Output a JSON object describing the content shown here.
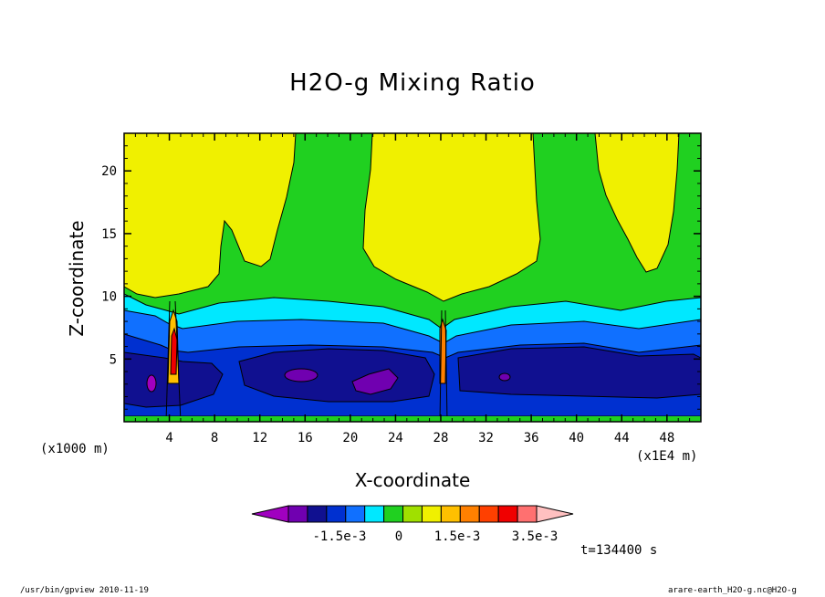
{
  "chart_data": {
    "type": "heatmap",
    "title": "H2O-g Mixing Ratio",
    "xlabel": "X-coordinate",
    "ylabel": "Z-coordinate",
    "x_unit_label": "(x1000 m)",
    "x_scale_label": "(x1E4 m)",
    "time_label": "t=134400 s",
    "x_ticks": [
      "4",
      "8",
      "12",
      "16",
      "20",
      "24",
      "28",
      "32",
      "36",
      "40",
      "44",
      "48"
    ],
    "y_ticks": [
      "5",
      "10",
      "15",
      "20"
    ],
    "xlim": [
      0,
      51
    ],
    "ylim": [
      0,
      23
    ],
    "colorbar": {
      "colors": [
        "#a000c0",
        "#7000b0",
        "#101090",
        "#0030d0",
        "#1070ff",
        "#00e8ff",
        "#20d020",
        "#a0e000",
        "#f0f000",
        "#ffc000",
        "#ff8000",
        "#ff4000",
        "#f00000",
        "#ff7070",
        "#ffc0c0"
      ],
      "labels": [
        "-1.5e-3",
        "0",
        "1.5e-3",
        "3.5e-3"
      ]
    }
  },
  "footer": {
    "left": "/usr/bin/gpview   2010-11-19",
    "right": "arare-earth_H2O-g.nc@H2O-g"
  }
}
